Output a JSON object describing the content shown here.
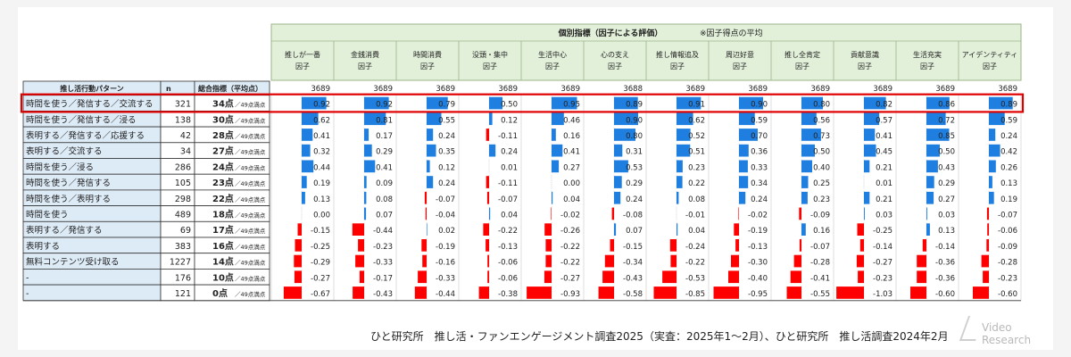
{
  "header": {
    "group_title": "個別指標（因子による評価）",
    "group_note": "※因子得点の平均",
    "row_label_header": "推し活行動パターン",
    "n_header": "n",
    "total_header": "総合指標（平均点）"
  },
  "footer": {
    "source": "ひと研究所　推し活・ファンエンゲージメント調査2025（実査：2025年1～2月）、ひと研究所　推し活調査2024年2月",
    "logo_text": "Video Research"
  },
  "chart_data": {
    "type": "table",
    "columns": [
      {
        "line1": "推しが一番",
        "line2": "因子",
        "n": "3689"
      },
      {
        "line1": "金銭消費",
        "line2": "因子",
        "n": "3689"
      },
      {
        "line1": "時間消費",
        "line2": "因子",
        "n": "3689"
      },
      {
        "line1": "没頭・集中",
        "line2": "因子",
        "n": "3689"
      },
      {
        "line1": "生活中心",
        "line2": "因子",
        "n": "3689"
      },
      {
        "line1": "心の支え",
        "line2": "因子",
        "n": "3688"
      },
      {
        "line1": "推し情報追及",
        "line2": "因子",
        "n": "3689"
      },
      {
        "line1": "周辺好意",
        "line2": "因子",
        "n": "3689"
      },
      {
        "line1": "推し全肯定",
        "line2": "因子",
        "n": "3689"
      },
      {
        "line1": "貢献意識",
        "line2": "因子",
        "n": "3689"
      },
      {
        "line1": "生活充実",
        "line2": "因子",
        "n": "3689"
      },
      {
        "line1": "アイデンティティ",
        "line2": "因子",
        "n": "3689"
      }
    ],
    "score_unit": "点",
    "score_suffix": "／49点満点",
    "highlighted_row": 0,
    "rows": [
      {
        "label": "時間を使う／発信する／交流する",
        "n": "321",
        "score": "34",
        "values": [
          0.92,
          0.92,
          0.79,
          0.5,
          0.95,
          0.89,
          0.91,
          0.9,
          0.8,
          0.82,
          0.86,
          0.89
        ]
      },
      {
        "label": "時間を使う／発信する／浸る",
        "n": "138",
        "score": "30",
        "values": [
          0.62,
          0.81,
          0.55,
          0.12,
          0.46,
          0.9,
          0.62,
          0.59,
          0.56,
          0.57,
          0.72,
          0.59
        ]
      },
      {
        "label": "表明する／発信する／応援する",
        "n": "42",
        "score": "28",
        "values": [
          0.41,
          0.17,
          0.24,
          -0.11,
          0.16,
          0.8,
          0.52,
          0.7,
          0.73,
          0.41,
          0.85,
          0.24
        ]
      },
      {
        "label": "表明する／交流する",
        "n": "34",
        "score": "27",
        "values": [
          0.32,
          0.29,
          0.35,
          0.24,
          0.41,
          0.31,
          0.51,
          0.36,
          0.5,
          0.45,
          0.5,
          0.42
        ]
      },
      {
        "label": "時間を使う／浸る",
        "n": "286",
        "score": "24",
        "values": [
          0.44,
          0.41,
          0.12,
          0.01,
          0.27,
          0.53,
          0.23,
          0.33,
          0.4,
          0.21,
          0.43,
          0.26
        ]
      },
      {
        "label": "時間を使う／発信する",
        "n": "105",
        "score": "23",
        "values": [
          0.19,
          0.09,
          0.24,
          -0.11,
          0.0,
          0.29,
          0.22,
          0.34,
          0.25,
          0.01,
          0.29,
          0.13
        ]
      },
      {
        "label": "時間を使う／表明する",
        "n": "298",
        "score": "22",
        "values": [
          0.13,
          0.08,
          -0.07,
          -0.07,
          0.04,
          0.24,
          0.08,
          0.24,
          0.23,
          0.21,
          0.27,
          0.19
        ]
      },
      {
        "label": "時間を使う",
        "n": "489",
        "score": "18",
        "values": [
          0.0,
          0.07,
          -0.04,
          0.04,
          -0.02,
          -0.08,
          -0.01,
          -0.02,
          -0.09,
          0.03,
          0.03,
          -0.07
        ]
      },
      {
        "label": "表明する／発信する",
        "n": "69",
        "score": "17",
        "values": [
          -0.15,
          -0.44,
          0.02,
          -0.22,
          -0.26,
          0.07,
          0.04,
          -0.19,
          0.16,
          -0.25,
          0.13,
          -0.06
        ]
      },
      {
        "label": "表明する",
        "n": "383",
        "score": "16",
        "values": [
          -0.25,
          -0.23,
          -0.19,
          -0.13,
          -0.22,
          -0.15,
          -0.24,
          -0.13,
          -0.07,
          -0.14,
          -0.14,
          -0.09
        ]
      },
      {
        "label": "無料コンテンツ受け取る",
        "n": "1227",
        "score": "14",
        "values": [
          -0.29,
          -0.33,
          -0.16,
          -0.06,
          -0.22,
          -0.34,
          -0.22,
          -0.3,
          -0.28,
          -0.27,
          -0.36,
          -0.28
        ]
      },
      {
        "label": "-",
        "n": "176",
        "score": "10",
        "values": [
          -0.27,
          -0.17,
          -0.33,
          -0.06,
          -0.27,
          -0.43,
          -0.53,
          -0.4,
          -0.41,
          -0.23,
          -0.36,
          -0.23
        ]
      },
      {
        "label": "-",
        "n": "121",
        "score": "0",
        "values": [
          -0.67,
          -0.43,
          -0.44,
          -0.38,
          -0.93,
          -0.58,
          -0.85,
          -0.95,
          -0.55,
          -1.03,
          -0.6,
          -0.6
        ]
      }
    ],
    "colors": {
      "positive": "#1f7fe0",
      "negative": "#ff0000",
      "header_fill": "#e2f0d9",
      "label_fill": "#ddebf7",
      "highlight": "#e00000"
    }
  }
}
